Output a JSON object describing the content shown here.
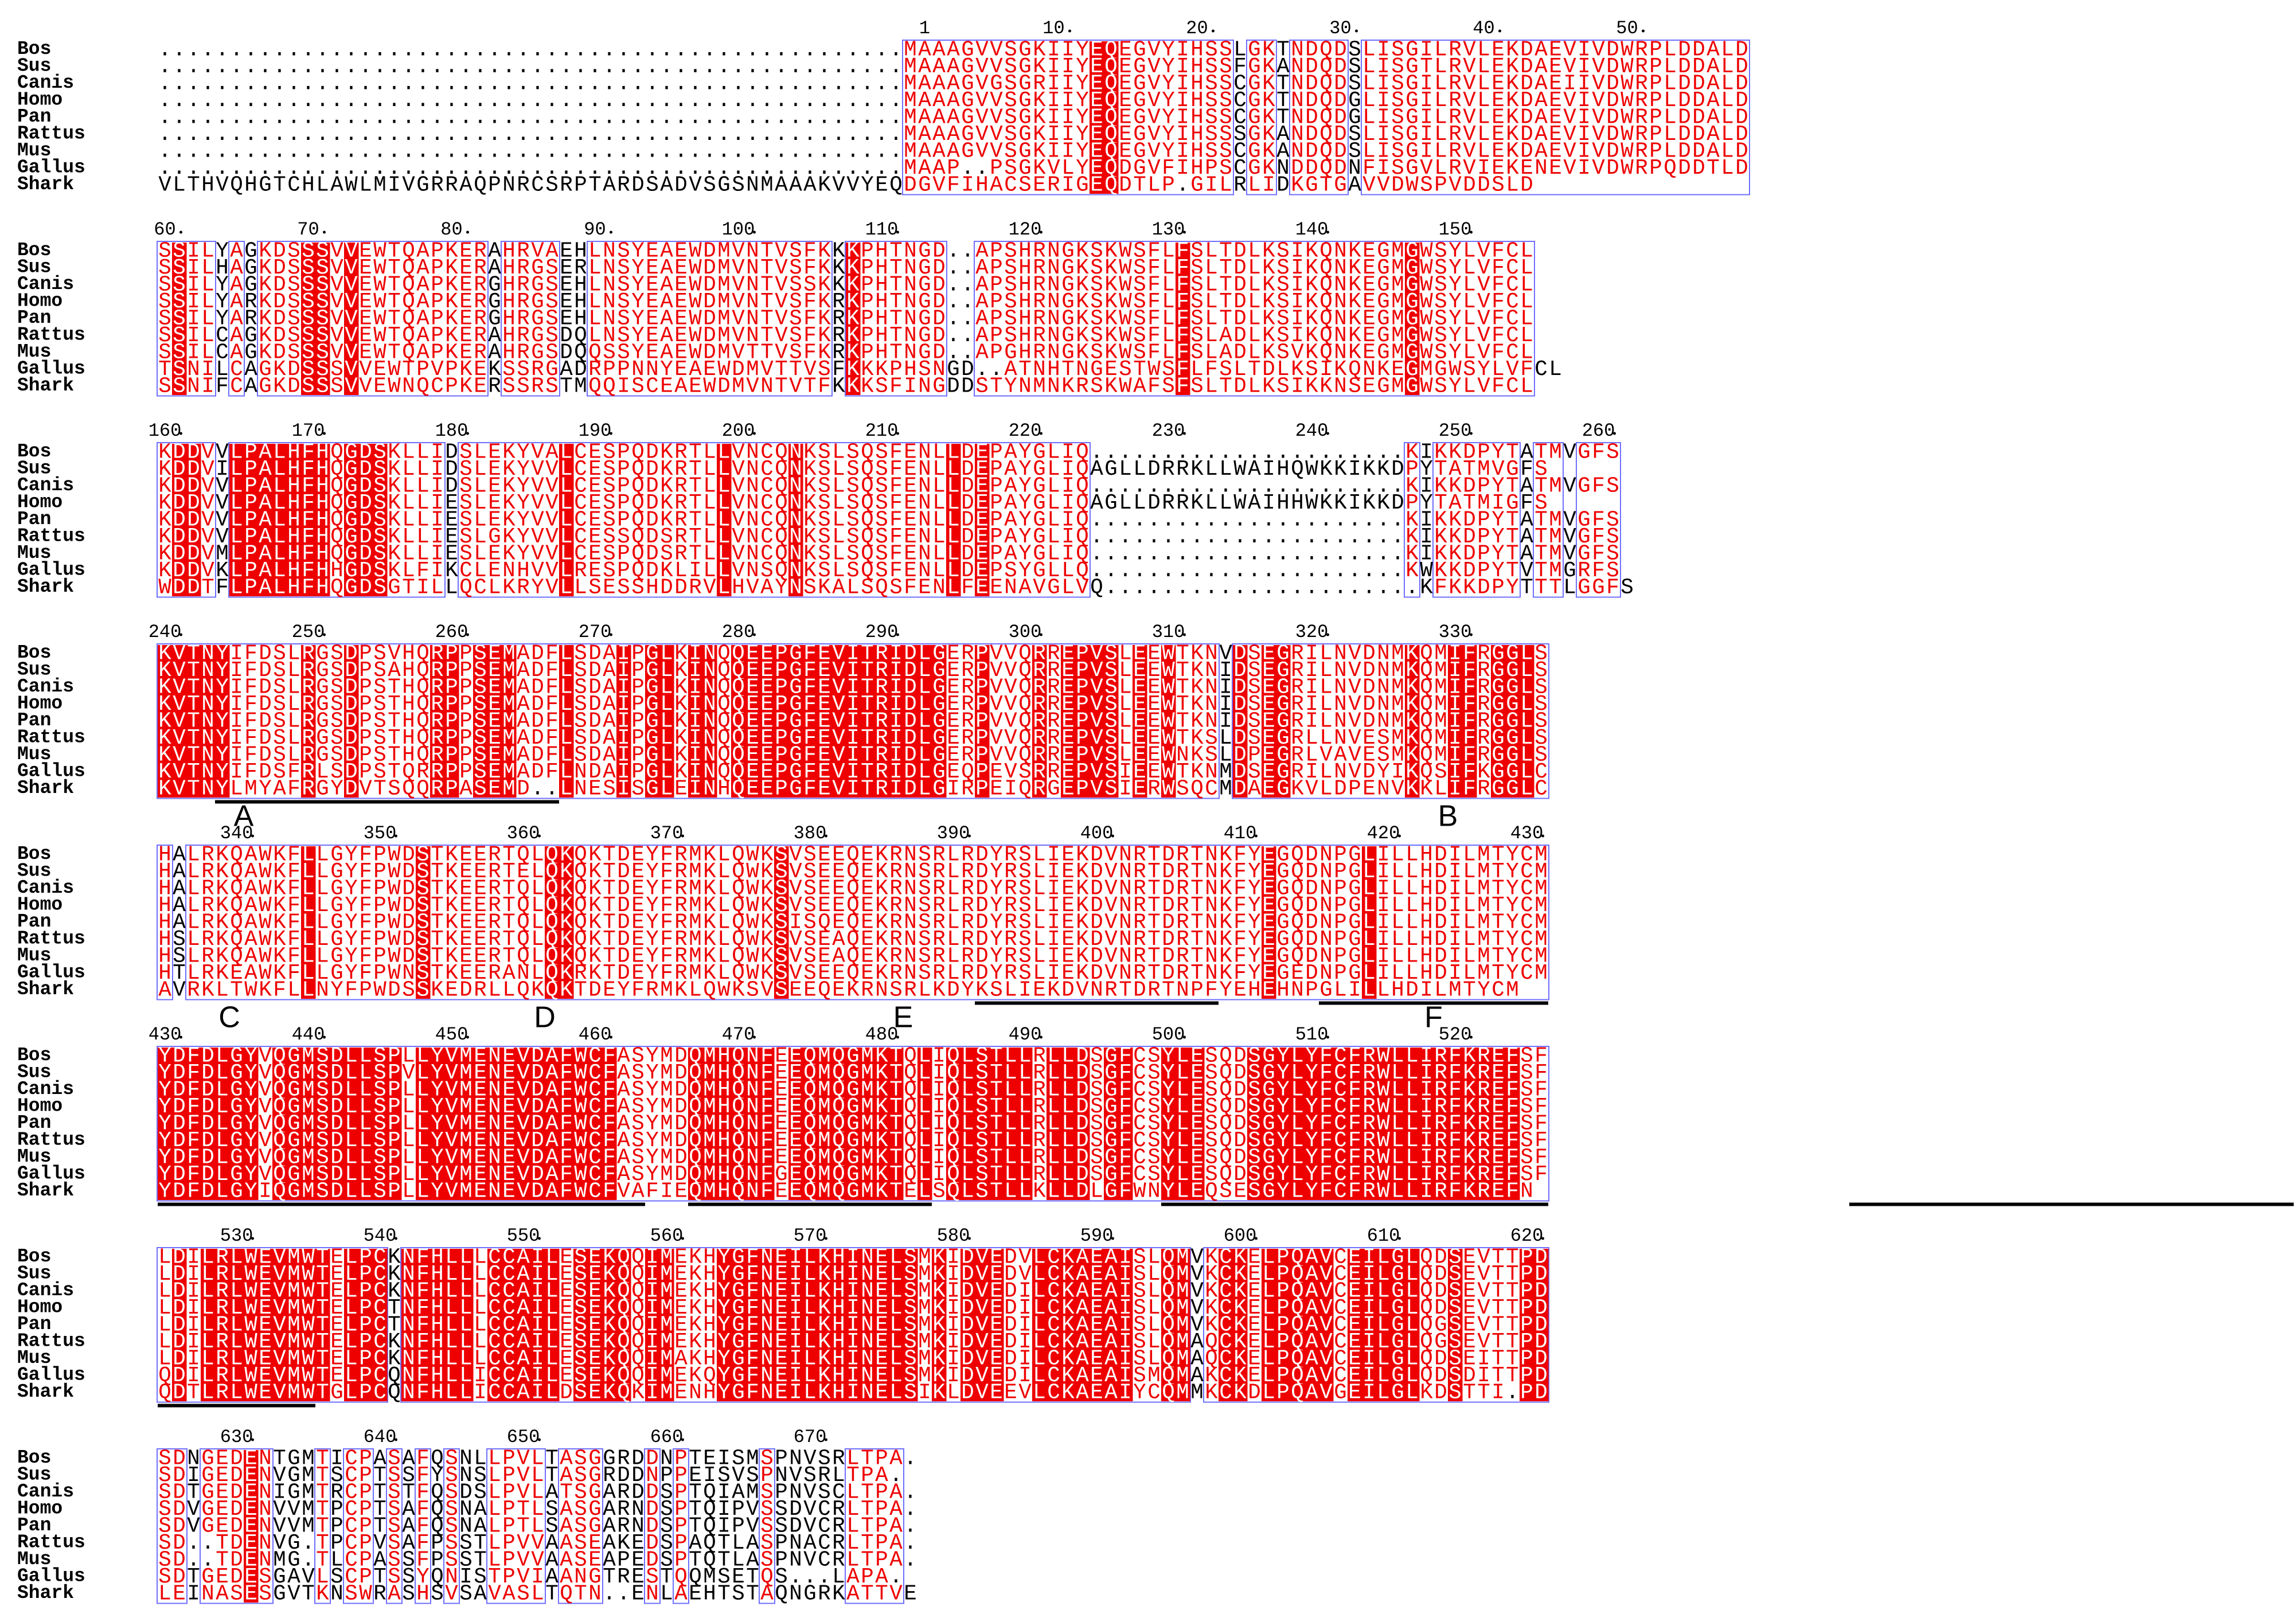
{
  "colors": {
    "strict": "#ee0000",
    "similar": "#ee0000",
    "box": "#6f6fff",
    "dot": "#000000",
    "normal": "#000000"
  },
  "species": [
    "Bos",
    "Sus",
    "Canis",
    "Homo",
    "Pan",
    "Rattus",
    "Mus",
    "Gallus",
    "Shark"
  ],
  "blocks": [
    {
      "start": 1,
      "offset": 53,
      "rows": [
        "....................................................MAAAGVVSGKIIYEQEGVYIHSSLGKTNDQDSLISGILRVLEKDAEVIVDWRPLDDALD",
        "....................................................MAAAGVVSGKIIYEQEGVYIHSSFGKANDQDSLISGTLRVLEKDAEVIVDWRPLDDALD",
        "....................................................MAAAGVGSGRIIYEQEGVYIHSSCGKTNDQDSLISGILRVLEKDAEIIVDWRPLDDALD",
        "....................................................MAAAGVVSGKIIYEQEGVYIHSSCGKTNDQDGLISGILRVLEKDAEVIVDWRPLDDALD",
        "....................................................MAAAGVVSGKIIYEQEGVYIHSSCGKTNDQDGLISGILRVLEKDAEVIVDWRPLDDALD",
        "....................................................MAAAGVVSGKIIYEQEGVYIHSSSGKANDQDSLISGILRVLEKDAEVIVDWRPLDDALD",
        "....................................................MAAAGVVSGKIIYEQEGVYIHSSCGKANDQDSLISGILRVLEKDAEVIVDWRPLDDALD",
        "....................................................MAAP..PSGKVLYEQDGVFIHPSCGKNDDQDNFISGVLRVIEKENEVIVDWRPQDDTLD",
        "VLTHVQHGTCHLAWLMIVGRRAQPNRCSRPTARDSADVSGSNMAAAKVVYEQDGVFIHACSERIGEQDTLP.GILRLIDKGTGAVVDWSPVDDSLD"
      ]
    },
    {
      "start": 60,
      "offset": 0,
      "rows": [
        "SSILYAGKDSSSVVEWTQAPKERAHRVAEHLNSYEAEWDMVNTVSFKKKPHTNGD..APSHRNGKSKWSFLFSLTDLKSIKQNKEGMGWSYLVFCL",
        "SSILHAGKDSSSVVEWTQAPKERAHRGSERLNSYEAEWDMVNTVSFKKKPHTNGD..APSHRNGKSKWSFLFSLTDLKSIKQNKEGMGWSYLVFCL",
        "SSILYAGKDSSSVVEWTQAPKERGHRGSEHLNSYEAEWDMVNTVSSKKKPHTNGD..APSHRNGKSKWSFLFSLTDLKSIKQNKEGMGWSYLVFCL",
        "SSILYARKDSSSVVEWTQAPKERGHRGSEHLNSYEAEWDMVNTVSFKRKPHTNGD..APSHRNGKSKWSFLFSLTDLKSIKQNKEGMGWSYLVFCL",
        "SSILYARKDSSSVVEWTQAPKERGHRGSEHLNSYEAEWDMVNTVSFKRKPHTNGD..APSHRNGKSKWSFLFSLTDLKSIKQNKEGMGWSYLVFCL",
        "SSILCAGKDSSSVVEWTQAPKERAHRGSDQLNSYEAEWDMVNTVSFKRKPHTNGD..APSHRNGKSKWSFLFSLADLKSIKQNKEGMGWSYLVFCL",
        "SSILCAGKDSSSVVEWTQAPKERAHRGSDQQSSYEAEWDMVTTVSFKRKPHTNGD..APGHRNGKSKWSFLFSLADLKSVKQNKEGMGWSYLVFCL",
        "TSNILCAGKDSSSVVEWTPVPKEKSSRGADRPPNNYEAEWDMVTTVSFKKKPHSNGD..ATNHTNGESTWSFLFSLTDLKSIKQNKEGMGWSYLVFCL",
        "SSNIFCAGKDSSSVVEWNQCPKERSSRSTMQQISCEAEWDMVNTVTFKKKSFINGDDSTYNMNKRSKWAFSFSLTDLKSIKKNSEGMGWSYLVFCL"
      ]
    },
    {
      "start": 160,
      "offset": 0,
      "rows": [
        "KDDVVLPALHFHQGDSKLLIDSLEKYVALCESPQDKRTLLVNCQNKSLSQSFENLLDEPAYGLIQ......................KIKKDPYTATMVGFS",
        "KDDVILPALHFHQGDSKLLIDSLEKYVVLCESPQDKRTLLVNCQNKSLSQSFENLLDEPAYGLIQAGLLDRRKLLWAIHQWKKIKKDPYTATMVGFS",
        "KDDVVLPALHFHQGDSKLLIDSLEKYVVLCESPQDKRTLLVNCQNKSLSQSFENLLDEPAYGLIQ......................KIKKDPYTATMVGFS",
        "KDDVVLPALHFHQGDSKLLIESLEKYVVLCESPQDKRTLLVNCQNKSLSQSFENLLDEPAYGLIQAGLLDRRKLLWAIHHWKKIKKDPYTATMIGFS",
        "KDDVVLPALHFHQGDSKLLIESLEKYVVLCESPQDKRTLLVNCQNKSLSQSFENLLDEPAYGLIQ......................KIKKDPYTATMVGFS",
        "KDDVVLPALHFHQGDSKLLIESLGKYVVLCESSQDSRTLLVNCQNKSLSQSFENLLDEPAYGLIQ......................KIKKDPYTATMVGFS",
        "KDDVMLPALHFHQGDSKLLIESLEKYVVLCESPQDSRTLLVNCQNKSLSQSFENLLDEPAYGLIQ......................KIKKDPYTATMVGFS",
        "KDDVKLPALHFHHGDSKLFIKCLENHVVLRESPQDKLILLVNSQNKSLSQSFENLLDEPSYGLLQ......................KWKKDPYTVTMGRFS",
        "WDDTFLPALHFHQGDSGTILLQCLKRYVLLSESSHDDRVLHVAYNSKALSQSFENLFEENAVGLVQ......................KFKKDPYTTTLGGFS"
      ]
    },
    {
      "start": 240,
      "offset": 0,
      "rows": [
        "KVTNYIFDSLRGSDPSVHQRPPSEMADFLSDAIPGLKINQQEEPGFEVITRIDLGERPVVQRREPVSLEEWTKNVDSEGRILNVDNMKQMIFRGGLS",
        "KVTNYIFDSLRGSDPSAHQRPPSEMADFLSDAIPGLKINQQEEPGFEVITRIDLGERPVVQRREPVSLEEWTKNIDSEGRILNVDNMKQMIFRGGLS",
        "KVTNYIFDSLRGSDPSTHQRPPSEMADFLSDAIPGLKINQQEEPGFEVITRIDLGERPVVQRREPVSLEEWTKNIDSEGRILNVDNMKQMIFRGGLS",
        "KVTNYIFDSLRGSDPSTHQRPPSEMADFLSDAIPGLKINQQEEPGFEVITRIDLGERPVVQRREPVSLEEWTKNIDSEGRILNVDNMKQMIFRGGLS",
        "KVTNYIFDSLRGSDPSTHQRPPSEMADFLSDAIPGLKINQQEEPGFEVITRIDLGERPVVQRREPVSLEEWTKNIDSEGRILNVDNMKQMIFRGGLS",
        "KVTNYIFDSLRGSDPSTHQRPPSEMADFLSDAIPGLKINQQEEPGFEVITRIDLGERPVVQRREPVSLEEWTKSLDSEGRLLNVESMKQMIFRGGLS",
        "KVTNYIFDSLRGSDPSTHQRPPSEMADFLSDAIPGLKINQQEEPGFEVITRIDLGERPVVQRREPVSLEEWNKSLDPEGRLVAVESMKQMIFRGGLS",
        "KVTNYIFDSFRLSDPSTQRRPPSEMADFLNDAIPGLKINQQEEPGFEVITRIDLGEQPEVSRREPVSIEEWTKNMDSEGRILNVDYIKQSIFKGGLC",
        "KVTNYLMYAFRGYDVTSQQRPASEMD..LNESISGLEINHQEEPGFEVITRIDLGIRPEIQRGEPVSIERWSQCMDAEGKVLDPENVKKLIFRGGLC"
      ]
    },
    {
      "start": 335,
      "offset": 0,
      "rows": [
        "HALRKQAWKFLLGYFPWDSTKEERTQLQKQKTDEYFRMKLQWKSVSEEQEKRNSRLRDYRSLIEKDVNRTDRTNKFYEGQDNPGLILLHDILMTYCM",
        "HALRKQAWKFLLGYFPWDSTKEERTELQKQKTDEYFRMKLQWKSVSEEQEKRNSRLRDYRSLIEKDVNRTDRTNKFYEGQDNPGLILLHDILMTYCM",
        "HALRKQAWKFLLGYFPWDSTKEERTQLQKQKTDEYFRMKLQWKSVSEEQEKRNSRLRDYRSLIEKDVNRTDRTNKFYEGQDNPGLILLHDILMTYCM",
        "HALRKQAWKFLLGYFPWDSTKEERTQLQKQKTDEYFRMKLQWKSVSEEQEKRNSRLRDYRSLIEKDVNRTDRTNKFYEGQDNPGLILLHDILMTYCM",
        "HALRKQAWKFLLGYFPWDSTKEERTQLQKQKTDEYFRMKLQWKSISQEQEKRNSRLRDYRSLIEKDVNRTDRTNKFYEGQDNPGLILLHDILMTYCM",
        "HSLRKQAWKFLLGYFPWDSTKEERTQLQKQKTDEYFRMKLQWKSVSEAQEKRNSRLRDYRSLIEKDVNRTDRTNKFYEGQDNPGLILLHDILMTYCM",
        "HSLRKQAWKFLLGYFPWDSTKEERTQLQKQKTDEYFRMKLQWKSVSEAQEKRNSRLRDYRSLIEKDVNRTDRTNKFYEGQDNPGLILLHDILMTYCM",
        "HTLRKEAWKFLLGYFPWNSTKEERANLQKRKTDEYFRMKLQWKSVSEEQEKRNSRLRDYRSLIEKDVNRTDRTNKFYEGEDNPGLILLHDILMTYCM",
        "AVRKLTWKFLLNYFPWDSSKEDRLLQKQKTDEYFRMKLQWKSVSEEQEKRNSRLKDYKSLIEKDVNRTDRTNPFYEHEHNPGLILLHDILMTYCM"
      ]
    },
    {
      "start": 430,
      "offset": 0,
      "rows": [
        "YDFDLGYVQGMSDLLSPLLYVMENEVDAFWCFASYMDQMHQNFEEQMQGMKTQLIQLSTLLRLLDSGFCSYLESQDSGYLYFCFRWLLIRFKREFSF",
        "YDFDLGYVQGMSDLLSPVLYVMENEVDAFWCFASYMDQMHQNFEEQMQGMKTQLIQLSTLLRLLDSGFCSYLESQDSGYLYFCFRWLLIRFKREFSF",
        "YDFDLGYVQGMSDLLSPLLYVMENEVDAFWCFASYMDQMHQNFEEQMQGMKTQLIQLSTLLRLLDSGFCSYLESQDSGYLYFCFRWLLIRFKREFSF",
        "YDFDLGYVQGMSDLLSPLLYVMENEVDAFWCFASYMDQMHQNFEEQMQGMKTQLIQLSTLLRLLDSGFCSYLESQDSGYLYFCFRWLLIRFKREFSF",
        "YDFDLGYVQGMSDLLSPLLYVMENEVDAFWCFASYMDQMHQNFEEQMQGMKTQLIQLSTLLRLLDSGFCSYLESQDSGYLYFCFRWLLIRFKREFSF",
        "YDFDLGYVQGMSDLLSPLLYVMENEVDAFWCFASYMDQMHQNFEEQMQGMKTQLIQLSTLLRLLDSGFCSYLESQDSGYLYFCFRWLLIRFKREFSF",
        "YDFDLGYVQGMSDLLSPLLYVMENEVDAFWCFASYMDQMHQNFEEQMQGMKTQLIQLSTLLRLLDSGFCSYLESQDSGYLYFCFRWLLIRFKREFSF",
        "YDFDLGYVQGMSDLLSPLLYVMENEVDAFWCFASYMDQMHQNFGEQMQGMKTQLIQLSTLLRLLDSGFCSYLESQDSGYLYFCFRWLLIRFKREFSF",
        "YDFDLGYIQGMSDLLSPLLYVMENEVDAFWCFVAFIEQMHQNFEEQMQGMKTELSQLSTLLKLLDLGFWNYLEQSESGYLYFCFRWLLIRFKREFN"
      ]
    },
    {
      "start": 525,
      "offset": 0,
      "rows": [
        "LDILRLWEVMWTELPCKNFHLLLCCAILESEKQQIMEKHYGFNEILKHINELSMKIDVEDVLCKAEAISLQMVKCKELPQAVCEILGLQDSEVTTPD",
        "LDILRLWEVMWTELPCKNFHLLLCCAILESEKQQIMEKHYGFNEILKHINELSMKIDVEDVLCKAEAISLQMVKCKELPQAVCEILGLQDSEVTTPD",
        "LDILRLWEVMWTELPCKNFHLLLCCAILESEKQQIMEKHYGFNEILKHINELSMKIDVEDILCKAEAISLQMVKCKELPQAVCEILGLQDSEVTTPD",
        "LDILRLWEVMWTELPCTNFHLLLCCAILESEKQQIMEKHYGFNEILKHINELSMKIDVEDILCKAEAISLQMVKCKELPQAVCEILGLQDSEVTTPD",
        "LDILRLWEVMWTELPCTNFHLLLCCAILESEKQQIMEKHYGFNEILKHINELSMKIDVEDILCKAEAISLQMVKCKELPQAVCEILGLQGSEVTTPD",
        "LDILRLWEVMWTELPCKNFHLLLCCAILESEKQQIMEKHYGFNEILKHINELSMKIDVEDILCKAEAISLQMAQCKELPQAVCEILGLQGSEVTTPD",
        "LDILRLWEVMWTELPCKNFHLLLCCAILESEKQQIMAKHYGFNEILKHINELSMKIDVEDILCKAEAISLQMAQCKELPQAVCEILGLQDSEITTPD",
        "QDILRLWEVMWTELPCQNFHLLICCAILESEKQQIMEKQYGFNEILKHINELSMKIDVEDILCKAEAISMQMAKCKELPQAVCEILGLQDSDITTPD",
        "QDTLRLWEVMWTGLPCQNFHLLICCAILDSEKQKIMENHYGFNEILKHINELSIKLDVEEVLCKAEAIYCQMMKCKDLPQAVGEILGLKDSTTI.PD"
      ]
    },
    {
      "start": 625,
      "offset": 0,
      "rows": [
        "SDNGEDENTGMTICPASAFQSNLLPVLTASGGRDDNPTEISMSPNVSRLTPA.",
        "SDIGEDENVGMTSCPTSSFYSNSLPVLTASGRDDNPPEISVSPNVSRLTPA.",
        "SDTGEDENIGMTRCPTSTFQSDSLPVLATSGARDDSPTQIAMSPNVSCLTPA.",
        "SDVGEDENVVMTPCPTSAFQSNALPTLSASGARNDSPTQIPVSSDVCRLTPA.",
        "SDVGEDENVVMTPCPTSAFQSNALPTLSASGARNDSPTQIPVSSDVCRLTPA.",
        "SD..TDENVG.TPCPVSAFPSSTLPVVAASEAKEDSPAQTLASPNACRLTPA.",
        "SD..TDENMG.TLCPASSFPSSTLPVVAASEAPEDSPTQTLASPNVCRLTPA.",
        "SDTGEDESGAVLSCPTSSYQNISTPVIAANGTRESTQQMSETQS...LAPA.",
        "LEINASESGVTKNSWRASHSVSAVASLTQTN..ENLAEHTSTAQNGRKATTVE"
      ]
    }
  ],
  "motif_labels": [
    {
      "label": "A",
      "block": 3,
      "col": 6
    },
    {
      "label": "B",
      "block": 3,
      "col": 90
    },
    {
      "label": "C",
      "block": 4,
      "col": 5
    },
    {
      "label": "D",
      "block": 4,
      "col": 27
    },
    {
      "label": "E",
      "block": 4,
      "col": 52
    },
    {
      "label": "F",
      "block": 4,
      "col": 89
    }
  ],
  "motif_bars": [
    {
      "block": 3,
      "from": 4,
      "to": 27
    },
    {
      "block": 4,
      "from": 57,
      "to": 73
    },
    {
      "block": 4,
      "from": 81,
      "to": 96
    },
    {
      "block": 5,
      "from": 0,
      "to": 33
    },
    {
      "block": 5,
      "from": 37,
      "to": 53
    },
    {
      "block": 5,
      "from": 70,
      "to": 96
    },
    {
      "block": 5,
      "from": 118,
      "to": 148
    },
    {
      "block": 6,
      "from": 0,
      "to": 10
    }
  ]
}
